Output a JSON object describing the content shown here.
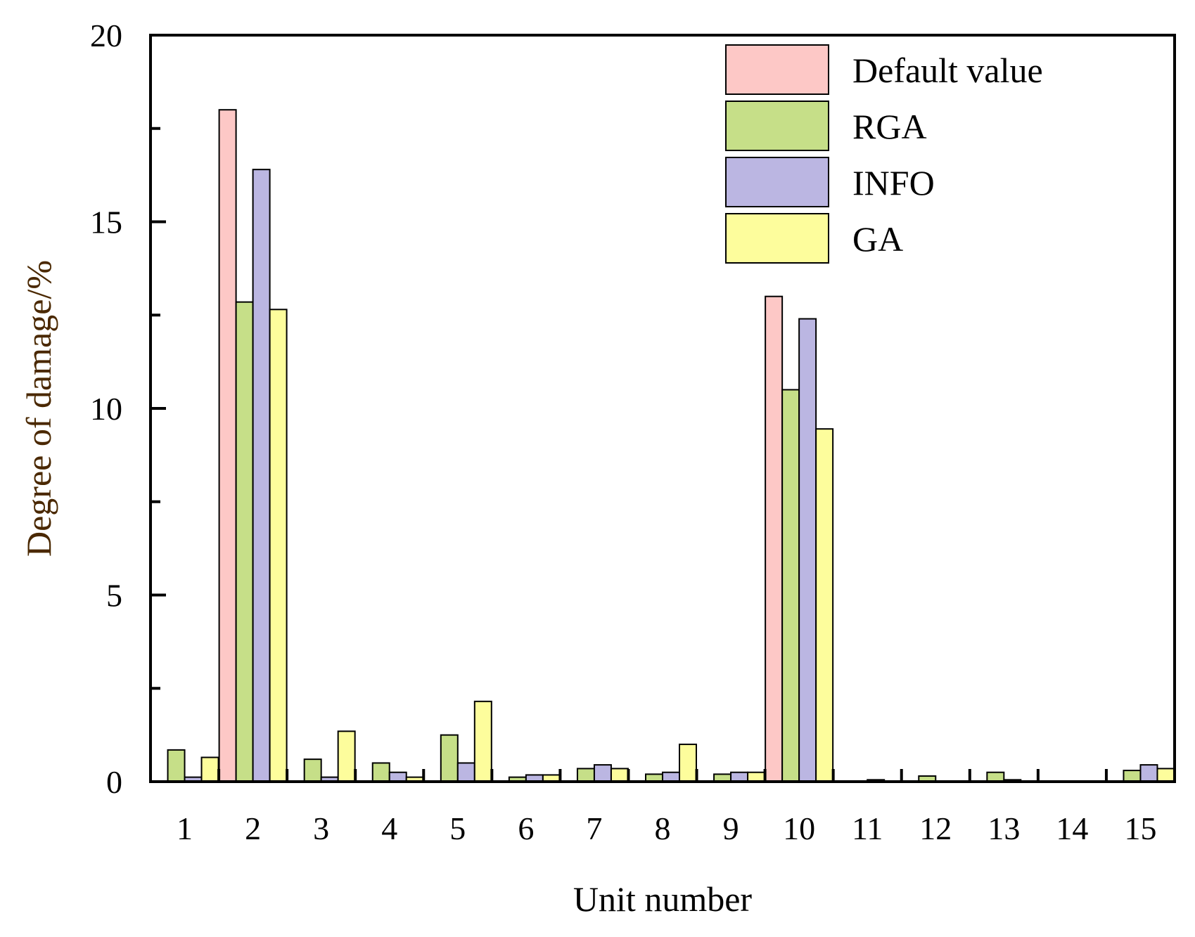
{
  "chart_data": {
    "type": "bar",
    "title": "",
    "xlabel": "Unit number",
    "ylabel": "Degree of damage/%",
    "ylim": [
      0,
      20
    ],
    "yticks": [
      0,
      5,
      10,
      15,
      20
    ],
    "categories": [
      "1",
      "2",
      "3",
      "4",
      "5",
      "6",
      "7",
      "8",
      "9",
      "10",
      "11",
      "12",
      "13",
      "14",
      "15"
    ],
    "series": [
      {
        "name": "Default value",
        "color": "#fdc8c6",
        "values": [
          0,
          18.0,
          0,
          0,
          0,
          0,
          0,
          0,
          0,
          13.0,
          0,
          0,
          0,
          0,
          0
        ]
      },
      {
        "name": "RGA",
        "color": "#c6df88",
        "values": [
          0.85,
          12.85,
          0.6,
          0.5,
          1.25,
          0.12,
          0.35,
          0.2,
          0.2,
          10.5,
          0,
          0.15,
          0.25,
          0,
          0.3
        ]
      },
      {
        "name": "INFO",
        "color": "#bbb6e2",
        "values": [
          0.12,
          16.4,
          0.12,
          0.25,
          0.5,
          0.18,
          0.45,
          0.25,
          0.25,
          12.4,
          0.05,
          0,
          0.05,
          0,
          0.45
        ]
      },
      {
        "name": "GA",
        "color": "#fdfd9c",
        "values": [
          0.65,
          12.65,
          1.35,
          0.12,
          2.15,
          0.18,
          0.35,
          1.0,
          0.25,
          9.45,
          0,
          0,
          0,
          0,
          0.35
        ]
      }
    ],
    "grid": false,
    "legend_position": "top-right"
  }
}
